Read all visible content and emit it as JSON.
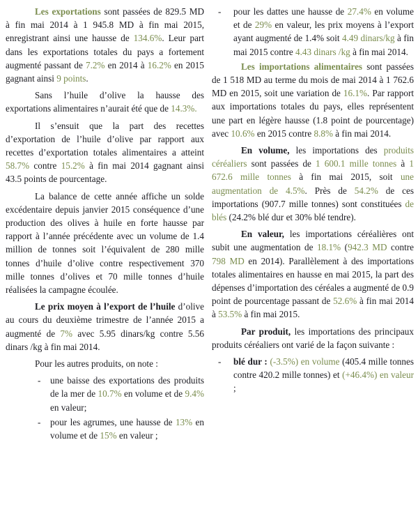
{
  "page": {
    "background": "#ffffff",
    "text_color": "#1c1c22",
    "accent_green": "#7a8c4e",
    "bullet_marker": "-"
  },
  "columns": {
    "left": [
      {
        "type": "paragraph",
        "segments": [
          [
            "gb",
            "Les exportations"
          ],
          [
            "n",
            " sont passées de 829.5 MD à fin mai 2014 à 1 945.8 MD à fin mai 2015, enregistrant ainsi une hausse de "
          ],
          [
            "g",
            "134.6%"
          ],
          [
            "n",
            ". Leur part dans les exportations totales du pays a fortement augmenté passant de "
          ],
          [
            "g",
            "7.2%"
          ],
          [
            "n",
            " en 2014 à "
          ],
          [
            "g",
            "16.2%"
          ],
          [
            "n",
            " en 2015 gagnant ainsi "
          ],
          [
            "g",
            "9 points"
          ],
          [
            "n",
            "."
          ]
        ]
      },
      {
        "type": "paragraph",
        "segments": [
          [
            "n",
            "Sans l’huile d’olive la hausse des exportations alimentaires n’aurait été que de "
          ],
          [
            "g",
            "14.3%."
          ]
        ]
      },
      {
        "type": "paragraph",
        "segments": [
          [
            "n",
            "Il s’ensuit que la part des recettes d’exportation de l’huile d’olive par rapport aux recettes d’exportation totales alimentaires a atteint "
          ],
          [
            "g",
            "58.7%"
          ],
          [
            "n",
            " contre "
          ],
          [
            "g",
            "15.2%"
          ],
          [
            "n",
            " à fin mai 2014 gagnant ainsi 43.5 points de pourcentage."
          ]
        ]
      },
      {
        "type": "paragraph",
        "segments": [
          [
            "n",
            "La balance de cette année affiche un solde excédentaire depuis janvier 2015 conséquence d’une production des olives à huile en forte hausse par rapport à l’année précédente avec un volume de 1.4 million de tonnes soit l’équivalent de 280 mille tonnes d’huile d’olive contre respectivement 370 mille tonnes d’olives et 70 mille tonnes d’huile réalisées la campagne écoulée."
          ]
        ]
      },
      {
        "type": "paragraph",
        "segments": [
          [
            "b",
            "Le prix moyen à l’export de l’huile"
          ],
          [
            "n",
            " d’olive au cours du deuxième trimestre de l’année 2015 a augmenté de "
          ],
          [
            "g",
            "7%"
          ],
          [
            "n",
            " avec 5.95 dinars/kg contre 5.56 dinars /kg à fin mai 2014."
          ]
        ]
      },
      {
        "type": "paragraph",
        "segments": [
          [
            "n",
            "Pour les autres produits, on note :"
          ]
        ]
      },
      {
        "type": "bullet",
        "segments": [
          [
            "n",
            "une baisse des exportations des produits de la mer de "
          ],
          [
            "g",
            "10.7%"
          ],
          [
            "n",
            " en volume et de "
          ],
          [
            "g",
            "9.4%"
          ],
          [
            "n",
            " en valeur;"
          ]
        ]
      },
      {
        "type": "bullet",
        "segments": [
          [
            "n",
            "pour les agrumes, une hausse de "
          ],
          [
            "g",
            "13%"
          ],
          [
            "n",
            " en volume et de "
          ],
          [
            "g",
            "15%"
          ],
          [
            "n",
            " en valeur ;"
          ]
        ]
      }
    ],
    "right": [
      {
        "type": "bullet",
        "segments": [
          [
            "n",
            "pour les dattes une hausse de "
          ],
          [
            "g",
            "27.4%"
          ],
          [
            "n",
            " en volume et de "
          ],
          [
            "g",
            "29%"
          ],
          [
            "n",
            " en valeur, les prix moyens à l’export ayant augmenté de 1.4% soit "
          ],
          [
            "g",
            "4.49 dinars/kg"
          ],
          [
            "n",
            " à fin mai 2015 contre "
          ],
          [
            "g",
            "4.43 dinars /kg"
          ],
          [
            "n",
            " à fin mai 2014."
          ]
        ]
      },
      {
        "type": "paragraph",
        "segments": [
          [
            "gb",
            "Les importations alimentaires"
          ],
          [
            "n",
            " sont passées de 1 518 MD au terme du mois de mai 2014 à 1 762.6 MD en 2015, soit une variation de "
          ],
          [
            "g",
            "16.1%"
          ],
          [
            "n",
            ". Par rapport aux importations totales du pays, elles représentent une part en légère hausse (1.8 point de pourcentage) avec "
          ],
          [
            "g",
            "10.6%"
          ],
          [
            "n",
            " en 2015 contre "
          ],
          [
            "g",
            "8.8%"
          ],
          [
            "n",
            " à fin mai 2014."
          ]
        ]
      },
      {
        "type": "paragraph",
        "segments": [
          [
            "b",
            "En volume,"
          ],
          [
            "n",
            " les importations des "
          ],
          [
            "g",
            "produits céréaliers"
          ],
          [
            "n",
            " sont passées de "
          ],
          [
            "g",
            "1 600.1 mille tonnes"
          ],
          [
            "n",
            " à "
          ],
          [
            "g",
            "1 672.6 mille tonnes"
          ],
          [
            "n",
            " à fin mai 2015, soit "
          ],
          [
            "g",
            "une augmentation de 4.5%"
          ],
          [
            "n",
            ". Près de "
          ],
          [
            "g",
            "54.2%"
          ],
          [
            "n",
            " de ces importations (907.7 mille tonnes) sont constituées "
          ],
          [
            "g",
            "de blés"
          ],
          [
            "n",
            " (24.2% blé dur et 30% blé tendre)."
          ]
        ]
      },
      {
        "type": "paragraph",
        "segments": [
          [
            "b",
            "En valeur,"
          ],
          [
            "n",
            " les importations céréalières ont subit une augmentation de "
          ],
          [
            "g",
            "18.1%"
          ],
          [
            "n",
            " ("
          ],
          [
            "g",
            "942.3 MD"
          ],
          [
            "n",
            " contre "
          ],
          [
            "g",
            "798 MD"
          ],
          [
            "n",
            " en 2014). Parallèlement à des importations totales alimentaires en hausse en mai 2015, la part des dépenses d’importation des céréales a augmenté de 0.9 point de pourcentage passant de "
          ],
          [
            "g",
            "52.6%"
          ],
          [
            "n",
            " à fin mai 2014 à "
          ],
          [
            "g",
            "53.5%"
          ],
          [
            "n",
            " à fin mai 2015."
          ]
        ]
      },
      {
        "type": "paragraph",
        "segments": [
          [
            "b",
            "Par produit,"
          ],
          [
            "n",
            " les importations des principaux produits céréaliers ont varié de la façon suivante :"
          ]
        ]
      },
      {
        "type": "bullet",
        "segments": [
          [
            "b",
            "blé dur :"
          ],
          [
            "n",
            " "
          ],
          [
            "g",
            "(-3.5%) en volume"
          ],
          [
            "n",
            " (405.4 mille tonnes contre 420.2 mille tonnes) et "
          ],
          [
            "g",
            "(+46.4%) en valeur"
          ],
          [
            "n",
            " ;"
          ]
        ]
      }
    ]
  }
}
